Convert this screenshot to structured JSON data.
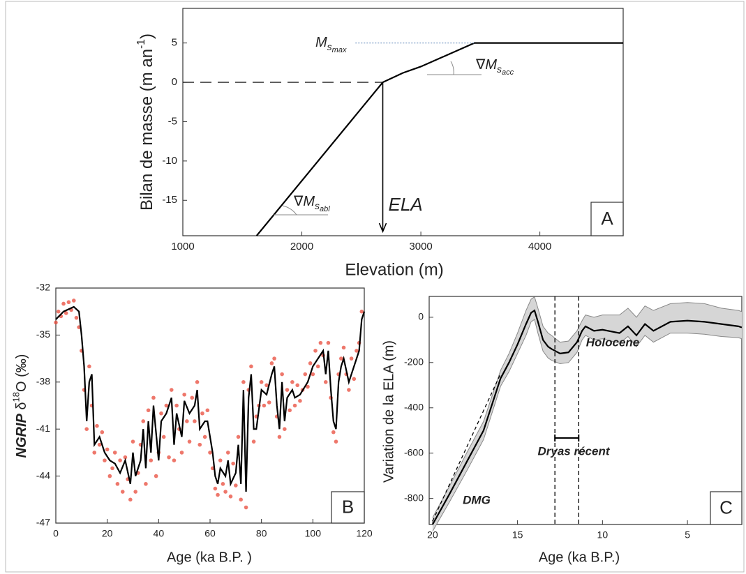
{
  "chart_data": [
    {
      "type": "line",
      "panel_label": "A",
      "xlabel": "Elevation (m)",
      "ylabel": {
        "text": "Bilan de masse (m an",
        "sup": "-1",
        "end": ")"
      },
      "xlim": [
        1000,
        4700
      ],
      "ylim": [
        -19.5,
        9.4
      ],
      "xticks": [
        1000,
        2000,
        3000,
        4000
      ],
      "yticks": [
        5,
        0,
        -5,
        -10,
        -15
      ],
      "series": [
        {
          "color": "#000000",
          "x": [
            1620,
            2680,
            2850,
            3000,
            3450,
            4700
          ],
          "values": [
            -19.5,
            0,
            1.2,
            2,
            5,
            5
          ]
        },
        {
          "color": "#000000",
          "dash": "16,9",
          "x": [
            1000,
            2680
          ],
          "values": [
            0,
            0
          ]
        },
        {
          "color": "#7a9cc6",
          "dash": "2,2",
          "x": [
            2450,
            3450
          ],
          "values": [
            5,
            5
          ]
        }
      ],
      "arrow": {
        "x": 2680,
        "label": "ELA"
      },
      "annotations": [
        {
          "text": "M",
          "sub": "s",
          "subsub": "max"
        },
        {
          "text": "∇M",
          "sub": "s",
          "subsub": "acc"
        },
        {
          "text": "∇M",
          "sub": "s",
          "subsub": "abl"
        }
      ]
    },
    {
      "type": "line",
      "panel_label": "B",
      "xlabel": "Age (ka B.P. )",
      "ylabel": {
        "bold": "NGRIP",
        "text": " δ",
        "sup": "18",
        "end": "O (‰)"
      },
      "xlim": [
        0,
        120
      ],
      "ylim": [
        -47,
        -32
      ],
      "xticks": [
        0,
        20,
        40,
        60,
        80,
        100,
        120
      ],
      "yticks": [
        -32,
        -35,
        -38,
        -41,
        -44,
        -47
      ],
      "series": [
        {
          "color": "#e8493a",
          "marker": "circle",
          "x": [
            0,
            1,
            2,
            3,
            4,
            5,
            6,
            7,
            8,
            9,
            10,
            11,
            12,
            13,
            14,
            15,
            16,
            17,
            18,
            19,
            20,
            21,
            22,
            23,
            24,
            25,
            26,
            27,
            28,
            29,
            30,
            31,
            32,
            33,
            34,
            35,
            36,
            37,
            38,
            39,
            40,
            41,
            42,
            43,
            44,
            45,
            46,
            47,
            48,
            49,
            50,
            51,
            52,
            53,
            54,
            55,
            56,
            57,
            58,
            59,
            60,
            61,
            62,
            63,
            64,
            65,
            66,
            67,
            68,
            69,
            70,
            71,
            72,
            73,
            74,
            75,
            76,
            77,
            78,
            79,
            80,
            81,
            82,
            83,
            84,
            85,
            86,
            87,
            88,
            89,
            90,
            91,
            92,
            93,
            94,
            95,
            96,
            97,
            98,
            99,
            100,
            101,
            102,
            103,
            104,
            105,
            106,
            107,
            108,
            109,
            110,
            111,
            112,
            113,
            114,
            115,
            116,
            117,
            118,
            119
          ],
          "values": [
            -34.2,
            -33.5,
            -33.8,
            -33,
            -33.6,
            -32.9,
            -33.4,
            -32.8,
            -33.9,
            -34.5,
            -36,
            -38.5,
            -41,
            -37,
            -39.5,
            -42.5,
            -40.8,
            -42,
            -41.2,
            -43,
            -42.3,
            -44,
            -43.5,
            -42.5,
            -44.5,
            -43,
            -45,
            -42.8,
            -44.2,
            -45.5,
            -41.8,
            -45,
            -43.8,
            -42,
            -40.5,
            -44.5,
            -39.8,
            -43,
            -39,
            -44,
            -42.5,
            -40,
            -41.5,
            -39.5,
            -42.8,
            -38.5,
            -43,
            -39.5,
            -41,
            -42.5,
            -38.8,
            -40.5,
            -41.8,
            -39,
            -40.5,
            -38,
            -42,
            -40,
            -41.5,
            -39.8,
            -42.5,
            -43.5,
            -44.8,
            -45.2,
            -43,
            -44.5,
            -45,
            -42.5,
            -45.3,
            -43.2,
            -44.6,
            -41.5,
            -45.5,
            -38,
            -46,
            -38.5,
            -37,
            -41.8,
            -40.2,
            -39.5,
            -38,
            -39.5,
            -38.2,
            -39.3,
            -36.8,
            -36.5,
            -40.2,
            -41.5,
            -37.5,
            -41,
            -38.5,
            -39.8,
            -38,
            -39.5,
            -38.2,
            -39.2,
            -38.5,
            -37.5,
            -38.3,
            -36.8,
            -37.5,
            -36,
            -37,
            -35.5,
            -36.3,
            -38,
            -35.5,
            -39,
            -41.2,
            -41.8,
            -37.5,
            -36.5,
            -35.8,
            -37.5,
            -38.5,
            -36.5,
            -37.8,
            -36,
            -35.5,
            -33.5
          ]
        },
        {
          "color": "#000000",
          "x": [
            0,
            3,
            7,
            9,
            10,
            11,
            12,
            13,
            14,
            15,
            17,
            19,
            21,
            23,
            25,
            27,
            29,
            30,
            31,
            33,
            34,
            35,
            36,
            37,
            38,
            40,
            41,
            43,
            45,
            46,
            47,
            49,
            50,
            52,
            54,
            55,
            56,
            58,
            59,
            61,
            62,
            63,
            64,
            66,
            67,
            68,
            70,
            71,
            72,
            73,
            74,
            75,
            76,
            77,
            78,
            80,
            82,
            84,
            85,
            86,
            87,
            88,
            89,
            90,
            92,
            93,
            95,
            98,
            100,
            102,
            104,
            105,
            106,
            107,
            108,
            109,
            110,
            111,
            112,
            114,
            116,
            117,
            118,
            119,
            120
          ],
          "values": [
            -34,
            -33.5,
            -33.2,
            -33.5,
            -35,
            -37,
            -40.5,
            -38,
            -37.5,
            -42,
            -41.5,
            -42.5,
            -43,
            -43.2,
            -43.8,
            -43,
            -44.5,
            -42.5,
            -44,
            -43,
            -41,
            -43.5,
            -40.5,
            -42.5,
            -39.5,
            -43,
            -40.5,
            -40,
            -39,
            -42,
            -40,
            -41.5,
            -39.2,
            -40,
            -39.5,
            -38.5,
            -41,
            -40.5,
            -40.5,
            -42.5,
            -44,
            -44.5,
            -43.5,
            -44,
            -43,
            -44.5,
            -43.8,
            -42,
            -44.5,
            -38.5,
            -45,
            -39,
            -37.5,
            -41,
            -41,
            -38.5,
            -38.8,
            -37.5,
            -37,
            -39.5,
            -41,
            -38,
            -40.5,
            -39,
            -38.5,
            -39,
            -38.8,
            -38,
            -37,
            -36.5,
            -36,
            -37.5,
            -36,
            -38.5,
            -40.5,
            -41,
            -38,
            -37,
            -36.5,
            -38,
            -37,
            -36.5,
            -36,
            -34,
            -33.5
          ]
        }
      ]
    },
    {
      "type": "line",
      "panel_label": "C",
      "xlabel": "Age (ka B.P.)",
      "ylabel": "Variation de la ELA (m)",
      "xlim": [
        20.2,
        1.8
      ],
      "ylim": [
        -915,
        92
      ],
      "xticks": [
        20,
        15,
        10,
        5
      ],
      "yticks": [
        0,
        -200,
        -400,
        -600,
        -800
      ],
      "band": {
        "color": "#d6d6d6",
        "x": [
          20,
          19,
          18,
          17,
          16,
          15.5,
          15,
          14.5,
          14.2,
          14,
          13.8,
          13.5,
          13.2,
          13,
          12.5,
          12,
          11.5,
          11.2,
          11,
          10.5,
          10,
          9,
          8.5,
          8,
          7.5,
          7,
          6,
          5,
          4,
          3,
          2,
          1.8
        ],
        "upper": [
          -885,
          -745,
          -600,
          -460,
          -235,
          -160,
          -70,
          30,
          80,
          90,
          40,
          -40,
          -70,
          -80,
          -110,
          -105,
          -60,
          -15,
          10,
          0,
          10,
          10,
          40,
          0,
          50,
          30,
          60,
          65,
          60,
          40,
          30,
          25
        ],
        "lower": [
          -945,
          -815,
          -680,
          -540,
          -305,
          -240,
          -160,
          -80,
          -20,
          -10,
          -70,
          -150,
          -180,
          -190,
          -205,
          -200,
          -155,
          -100,
          -80,
          -100,
          -95,
          -115,
          -85,
          -130,
          -80,
          -110,
          -70,
          -70,
          -75,
          -85,
          -90,
          -95
        ]
      },
      "series": [
        {
          "color": "#000000",
          "x": [
            20,
            19,
            18,
            17,
            16,
            15.5,
            15,
            14.5,
            14.2,
            14,
            13.8,
            13.5,
            13.2,
            13,
            12.5,
            12,
            11.5,
            11.2,
            11,
            10.5,
            10,
            9,
            8.5,
            8,
            7.5,
            7,
            6,
            5,
            4,
            3,
            2,
            1.8
          ],
          "values": [
            -915,
            -780,
            -640,
            -500,
            -270,
            -200,
            -120,
            -30,
            20,
            30,
            -20,
            -100,
            -130,
            -140,
            -160,
            -155,
            -110,
            -60,
            -40,
            -60,
            -55,
            -70,
            -40,
            -80,
            -30,
            -60,
            -20,
            -15,
            -20,
            -30,
            -40,
            -45
          ]
        },
        {
          "color": "#000000",
          "dash": "5,4",
          "x": [
            20,
            16
          ],
          "values": [
            -900,
            -250
          ]
        }
      ],
      "vlines": [
        12.8,
        11.4
      ],
      "annotations": [
        "Holocene",
        "Dryas récent",
        "DMG"
      ]
    }
  ]
}
